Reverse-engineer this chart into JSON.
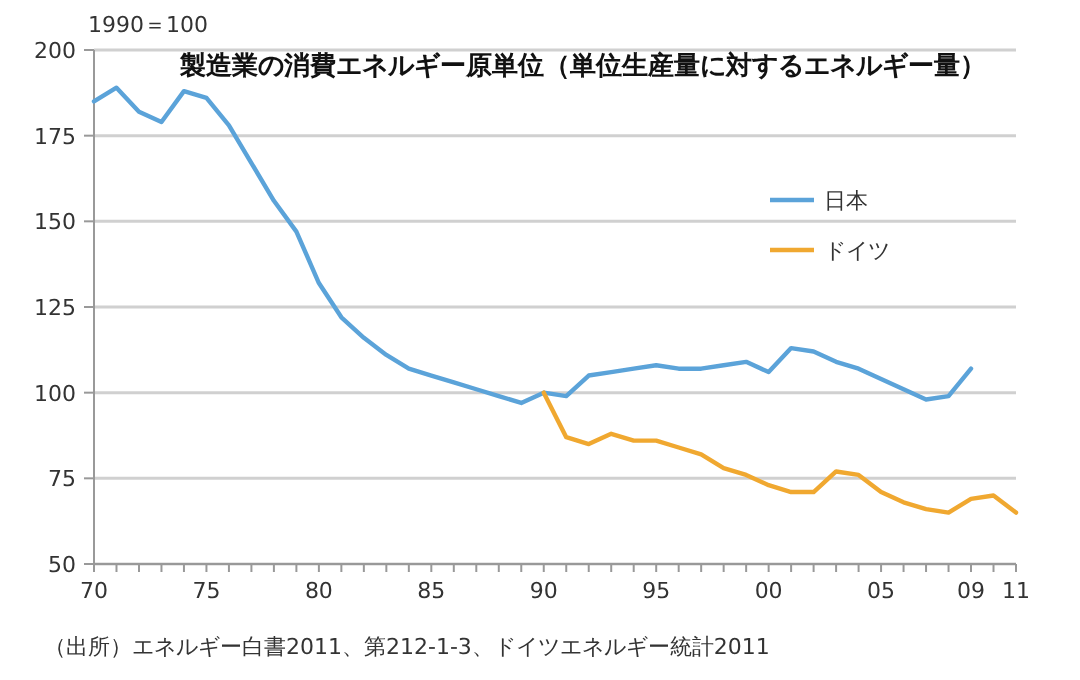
{
  "chart_data": {
    "type": "line",
    "title": "製造業の消費エネルギー原単位（単位生産量に対するエネルギー量）",
    "ylabel": "1990＝100",
    "annotations": [
      "（出所）エネルギー白書2011、第212-1-3、ドイツエネルギー統計2011"
    ],
    "xlim": [
      1970,
      2011
    ],
    "ylim": [
      50,
      200
    ],
    "yticks": [
      50,
      75,
      100,
      125,
      150,
      175,
      200
    ],
    "xticks": [
      {
        "value": 1970,
        "label": "70"
      },
      {
        "value": 1971,
        "label": null
      },
      {
        "value": 1972,
        "label": null
      },
      {
        "value": 1973,
        "label": null
      },
      {
        "value": 1974,
        "label": null
      },
      {
        "value": 1975,
        "label": "75"
      },
      {
        "value": 1976,
        "label": null
      },
      {
        "value": 1977,
        "label": null
      },
      {
        "value": 1978,
        "label": null
      },
      {
        "value": 1979,
        "label": null
      },
      {
        "value": 1980,
        "label": "80"
      },
      {
        "value": 1981,
        "label": null
      },
      {
        "value": 1982,
        "label": null
      },
      {
        "value": 1983,
        "label": null
      },
      {
        "value": 1984,
        "label": null
      },
      {
        "value": 1985,
        "label": "85"
      },
      {
        "value": 1986,
        "label": null
      },
      {
        "value": 1987,
        "label": null
      },
      {
        "value": 1988,
        "label": null
      },
      {
        "value": 1989,
        "label": null
      },
      {
        "value": 1990,
        "label": "90"
      },
      {
        "value": 1991,
        "label": null
      },
      {
        "value": 1992,
        "label": null
      },
      {
        "value": 1993,
        "label": null
      },
      {
        "value": 1994,
        "label": null
      },
      {
        "value": 1995,
        "label": "95"
      },
      {
        "value": 1996,
        "label": null
      },
      {
        "value": 1997,
        "label": null
      },
      {
        "value": 1998,
        "label": null
      },
      {
        "value": 1999,
        "label": null
      },
      {
        "value": 2000,
        "label": "00"
      },
      {
        "value": 2001,
        "label": null
      },
      {
        "value": 2002,
        "label": null
      },
      {
        "value": 2003,
        "label": null
      },
      {
        "value": 2004,
        "label": null
      },
      {
        "value": 2005,
        "label": "05"
      },
      {
        "value": 2006,
        "label": null
      },
      {
        "value": 2007,
        "label": null
      },
      {
        "value": 2008,
        "label": null
      },
      {
        "value": 2009,
        "label": "09"
      },
      {
        "value": 2010,
        "label": null
      },
      {
        "value": 2011,
        "label": "11"
      }
    ],
    "grid": "y",
    "legend": "right",
    "marker": "none",
    "line_style": "solid",
    "series": [
      {
        "name": "日本",
        "color": "#5ba3d9",
        "x": [
          1970,
          1971,
          1972,
          1973,
          1974,
          1975,
          1976,
          1977,
          1978,
          1979,
          1980,
          1981,
          1982,
          1983,
          1984,
          1985,
          1986,
          1987,
          1988,
          1989,
          1990,
          1991,
          1992,
          1993,
          1994,
          1995,
          1996,
          1997,
          1998,
          1999,
          2000,
          2001,
          2002,
          2003,
          2004,
          2005,
          2006,
          2007,
          2008,
          2009
        ],
        "values": [
          185,
          189,
          182,
          179,
          188,
          186,
          178,
          167,
          156,
          147,
          132,
          122,
          116,
          111,
          107,
          105,
          103,
          101,
          99,
          97,
          100,
          99,
          105,
          106,
          107,
          108,
          107,
          107,
          108,
          109,
          106,
          113,
          112,
          109,
          107,
          104,
          101,
          98,
          99,
          107
        ]
      },
      {
        "name": "ドイツ",
        "color": "#f0a830",
        "x": [
          1990,
          1991,
          1992,
          1993,
          1994,
          1995,
          1996,
          1997,
          1998,
          1999,
          2000,
          2001,
          2002,
          2003,
          2004,
          2005,
          2006,
          2007,
          2008,
          2009,
          2010,
          2011
        ],
        "values": [
          100,
          87,
          85,
          88,
          86,
          86,
          84,
          82,
          78,
          76,
          73,
          71,
          71,
          77,
          76,
          71,
          68,
          66,
          65,
          69,
          70,
          65
        ]
      }
    ]
  }
}
